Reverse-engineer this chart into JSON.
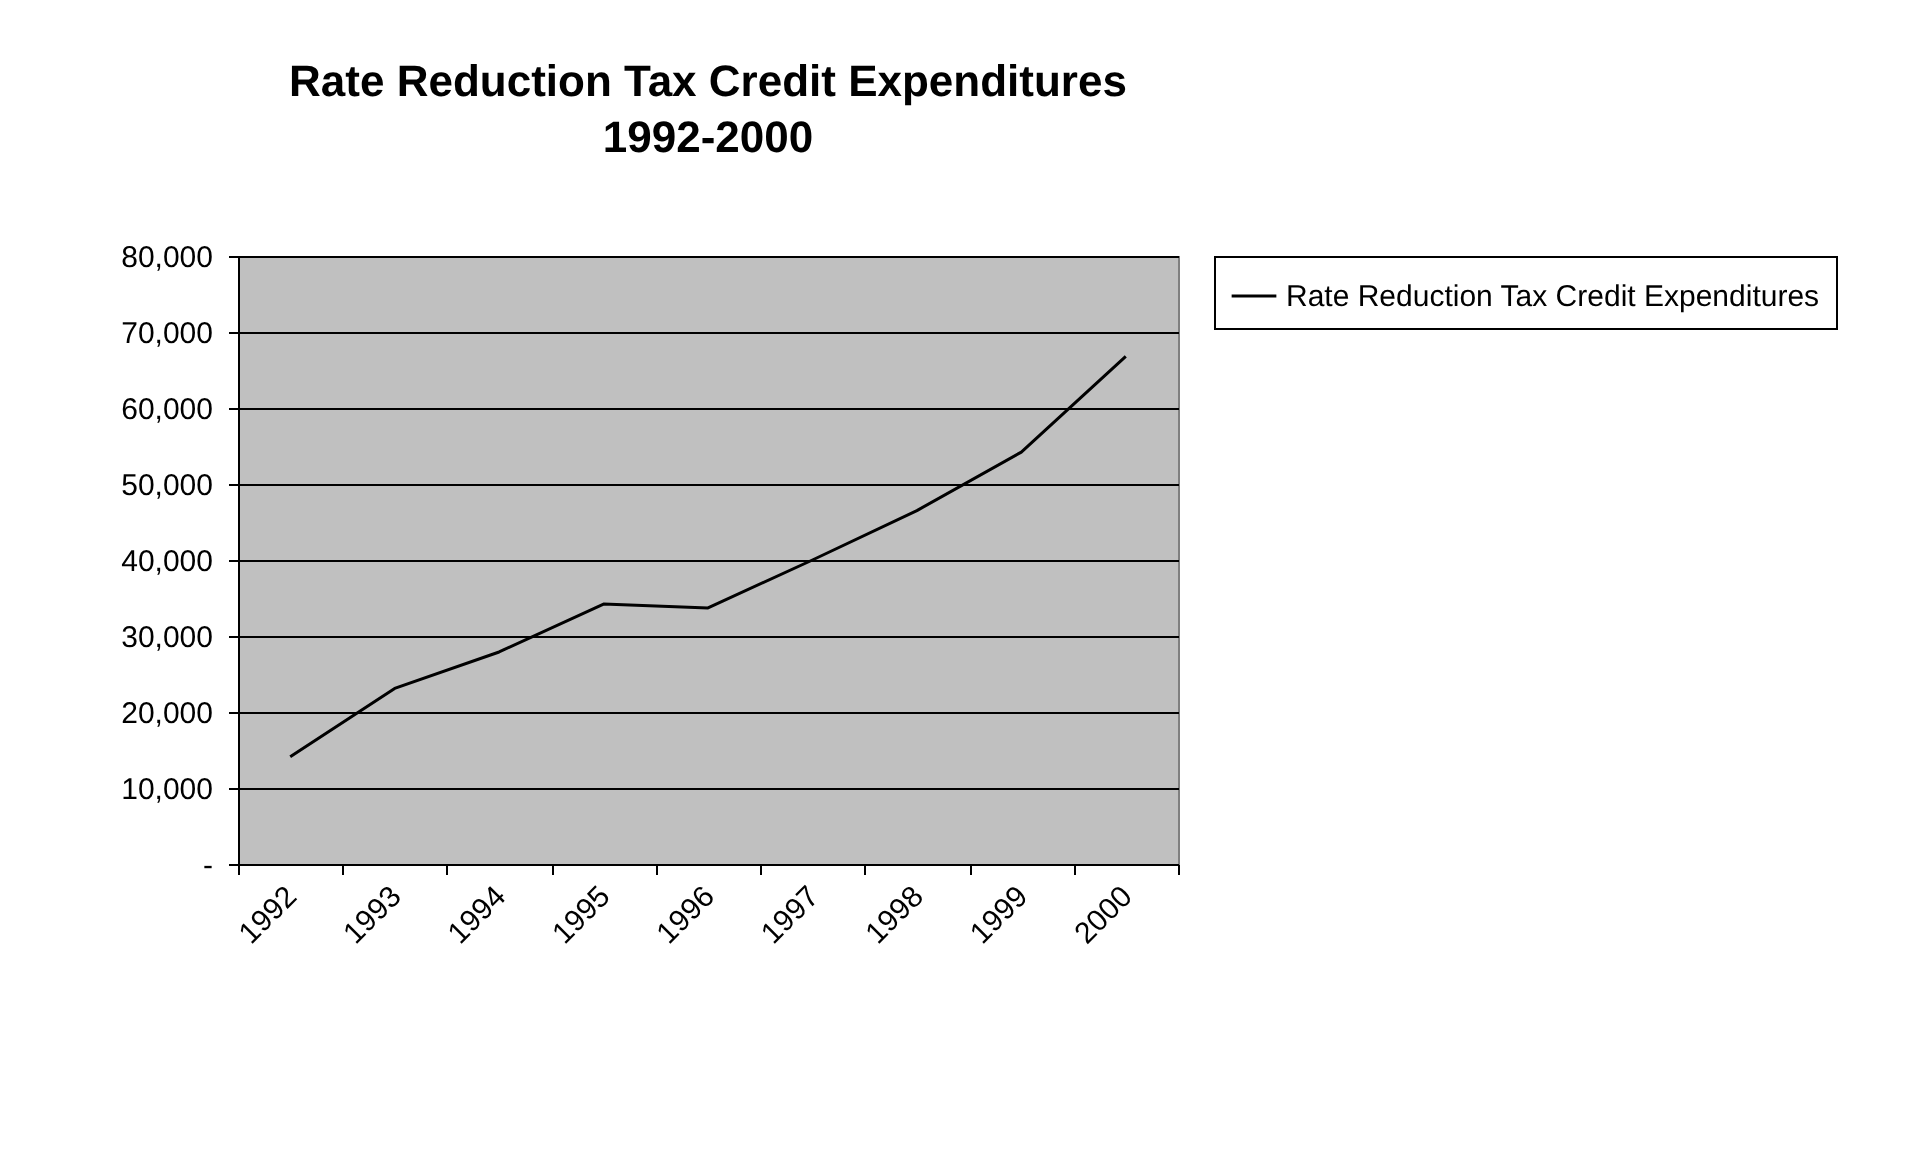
{
  "chart_data": {
    "type": "line",
    "title": "Rate Reduction Tax Credit Expenditures",
    "subtitle": "1992-2000",
    "categories": [
      "1992",
      "1993",
      "1994",
      "1995",
      "1996",
      "1997",
      "1998",
      "1999",
      "2000"
    ],
    "series": [
      {
        "name": "Rate Reduction Tax Credit Expenditures",
        "color": "#000000",
        "values": [
          14100,
          23100,
          27900,
          34200,
          33700,
          40000,
          46500,
          54200,
          66800
        ]
      }
    ],
    "ylim": [
      0,
      80000
    ],
    "yticks": [
      {
        "value": 0,
        "label": "-"
      },
      {
        "value": 10000,
        "label": "10,000"
      },
      {
        "value": 20000,
        "label": "20,000"
      },
      {
        "value": 30000,
        "label": "30,000"
      },
      {
        "value": 40000,
        "label": "40,000"
      },
      {
        "value": 50000,
        "label": "50,000"
      },
      {
        "value": 60000,
        "label": "60,000"
      },
      {
        "value": 70000,
        "label": "70,000"
      },
      {
        "value": 80000,
        "label": "80,000"
      }
    ],
    "grid": "y",
    "legend": "right",
    "marker": "none",
    "line_style": "solid"
  }
}
